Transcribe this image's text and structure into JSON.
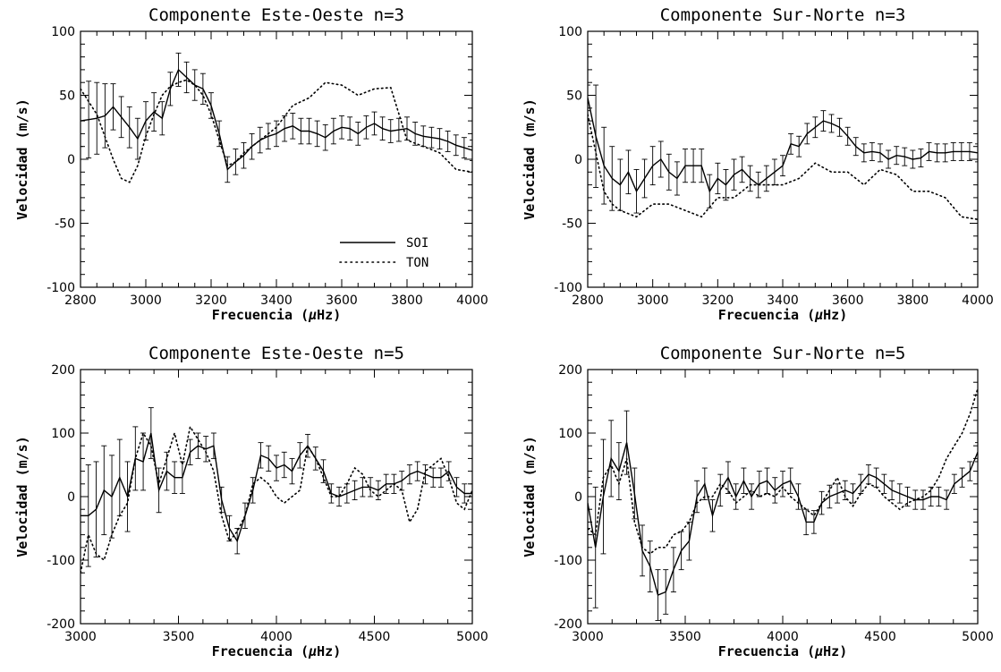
{
  "chart_data": [
    {
      "type": "line",
      "title": "Componente  Este-Oeste   n=3",
      "xlabel_main": "Frecuencia  (",
      "xlabel_mu": "μ",
      "xlabel_unit": "Hz)",
      "ylabel": "Velocidad  (m/s)",
      "xlim": [
        2800,
        4000
      ],
      "ylim": [
        -100,
        100
      ],
      "xticks": [
        "2800",
        "3000",
        "3200",
        "3400",
        "3600",
        "3800",
        "4000"
      ],
      "yticks": [
        "-100",
        "-50",
        "0",
        "50",
        "100"
      ],
      "legend": {
        "position": "lower-right",
        "entries": [
          {
            "label": "SOI",
            "style": "solid"
          },
          {
            "label": "TON",
            "style": "dotted"
          }
        ]
      },
      "series": [
        {
          "name": "SOI",
          "style": "solid",
          "x": [
            2800,
            2825,
            2850,
            2875,
            2900,
            2925,
            2950,
            2975,
            3000,
            3025,
            3050,
            3075,
            3100,
            3125,
            3150,
            3175,
            3200,
            3225,
            3250,
            3275,
            3300,
            3325,
            3350,
            3375,
            3400,
            3425,
            3450,
            3475,
            3500,
            3525,
            3550,
            3575,
            3600,
            3625,
            3650,
            3675,
            3700,
            3725,
            3750,
            3775,
            3800,
            3825,
            3850,
            3875,
            3900,
            3925,
            3950,
            3975,
            4000
          ],
          "y": [
            30,
            31,
            32,
            34,
            41,
            33,
            25,
            16,
            30,
            37,
            32,
            55,
            70,
            64,
            58,
            55,
            42,
            20,
            -8,
            -2,
            3,
            10,
            15,
            18,
            20,
            24,
            26,
            22,
            22,
            20,
            17,
            22,
            25,
            24,
            20,
            25,
            28,
            24,
            22,
            23,
            24,
            20,
            18,
            17,
            16,
            14,
            11,
            9,
            7
          ],
          "err": [
            20,
            30,
            28,
            25,
            18,
            16,
            16,
            16,
            15,
            15,
            13,
            13,
            13,
            12,
            12,
            12,
            10,
            10,
            10,
            10,
            10,
            10,
            10,
            10,
            10,
            10,
            10,
            10,
            10,
            10,
            10,
            10,
            9,
            9,
            9,
            9,
            9,
            9,
            9,
            9,
            9,
            9,
            8,
            8,
            8,
            8,
            8,
            8,
            8
          ]
        },
        {
          "name": "TON",
          "style": "dotted",
          "x": [
            2800,
            2850,
            2900,
            2925,
            2950,
            2975,
            3000,
            3025,
            3050,
            3075,
            3100,
            3125,
            3150,
            3175,
            3200,
            3225,
            3250,
            3275,
            3300,
            3350,
            3400,
            3450,
            3500,
            3550,
            3600,
            3650,
            3700,
            3750,
            3800,
            3850,
            3900,
            3950,
            4000
          ],
          "y": [
            55,
            35,
            0,
            -15,
            -18,
            -5,
            18,
            35,
            50,
            57,
            60,
            62,
            58,
            50,
            35,
            15,
            -5,
            -2,
            5,
            15,
            25,
            42,
            48,
            60,
            58,
            50,
            55,
            56,
            15,
            10,
            5,
            -8,
            -10
          ]
        }
      ]
    },
    {
      "type": "line",
      "title": "Componente  Sur-Norte    n=3",
      "xlabel_main": "Frecuencia  (",
      "xlabel_mu": "μ",
      "xlabel_unit": "Hz)",
      "ylabel": "Velocidad  (m/s)",
      "xlim": [
        2800,
        4000
      ],
      "ylim": [
        -100,
        100
      ],
      "xticks": [
        "2800",
        "3000",
        "3200",
        "3400",
        "3600",
        "3800",
        "4000"
      ],
      "yticks": [
        "-100",
        "-50",
        "0",
        "50",
        "100"
      ],
      "series": [
        {
          "name": "SOI",
          "style": "solid",
          "x": [
            2800,
            2825,
            2850,
            2875,
            2900,
            2925,
            2950,
            2975,
            3000,
            3025,
            3050,
            3075,
            3100,
            3125,
            3150,
            3175,
            3200,
            3225,
            3250,
            3275,
            3300,
            3325,
            3350,
            3375,
            3400,
            3425,
            3450,
            3475,
            3500,
            3525,
            3550,
            3575,
            3600,
            3625,
            3650,
            3675,
            3700,
            3725,
            3750,
            3775,
            3800,
            3825,
            3850,
            3875,
            3900,
            3925,
            3950,
            3975,
            4000
          ],
          "y": [
            48,
            18,
            -5,
            -15,
            -20,
            -10,
            -25,
            -15,
            -5,
            0,
            -10,
            -15,
            -5,
            -5,
            -5,
            -25,
            -15,
            -20,
            -12,
            -8,
            -15,
            -20,
            -15,
            -10,
            -5,
            12,
            10,
            20,
            25,
            30,
            28,
            25,
            18,
            10,
            5,
            6,
            5,
            0,
            3,
            2,
            0,
            1,
            6,
            5,
            5,
            6,
            6,
            6,
            5
          ],
          "err": [
            10,
            40,
            30,
            25,
            20,
            17,
            17,
            15,
            15,
            14,
            14,
            13,
            13,
            13,
            13,
            13,
            12,
            12,
            12,
            10,
            10,
            10,
            10,
            10,
            8,
            8,
            8,
            8,
            8,
            8,
            7,
            7,
            7,
            7,
            7,
            7,
            7,
            7,
            7,
            7,
            7,
            7,
            7,
            7,
            7,
            7,
            7,
            7,
            7
          ]
        },
        {
          "name": "TON",
          "style": "dotted",
          "x": [
            2800,
            2825,
            2850,
            2875,
            2900,
            2950,
            3000,
            3050,
            3100,
            3150,
            3200,
            3250,
            3300,
            3350,
            3400,
            3450,
            3500,
            3550,
            3600,
            3650,
            3700,
            3750,
            3800,
            3850,
            3900,
            3950,
            4000
          ],
          "y": [
            35,
            5,
            -25,
            -35,
            -40,
            -45,
            -35,
            -35,
            -40,
            -45,
            -30,
            -30,
            -20,
            -20,
            -20,
            -15,
            -3,
            -10,
            -10,
            -20,
            -8,
            -12,
            -25,
            -25,
            -30,
            -45,
            -47
          ]
        }
      ]
    },
    {
      "type": "line",
      "title": "Componente  Este-Oeste   n=5",
      "xlabel_main": "Frecuencia  (",
      "xlabel_mu": "μ",
      "xlabel_unit": "Hz)",
      "ylabel": "Velocidad  (m/s)",
      "xlim": [
        3000,
        5000
      ],
      "ylim": [
        -200,
        200
      ],
      "xticks": [
        "3000",
        "3500",
        "4000",
        "4500",
        "5000"
      ],
      "yticks": [
        "-200",
        "-100",
        "0",
        "100",
        "200"
      ],
      "series": [
        {
          "name": "SOI",
          "style": "solid",
          "x": [
            3000,
            3040,
            3080,
            3120,
            3160,
            3200,
            3240,
            3280,
            3320,
            3360,
            3400,
            3440,
            3480,
            3520,
            3560,
            3600,
            3640,
            3680,
            3720,
            3760,
            3800,
            3840,
            3880,
            3920,
            3960,
            4000,
            4040,
            4080,
            4120,
            4160,
            4200,
            4240,
            4280,
            4320,
            4360,
            4400,
            4440,
            4480,
            4520,
            4560,
            4600,
            4640,
            4680,
            4720,
            4760,
            4800,
            4840,
            4880,
            4920,
            4960,
            5000
          ],
          "y": [
            -30,
            -30,
            -20,
            10,
            0,
            30,
            0,
            60,
            55,
            100,
            10,
            40,
            30,
            30,
            70,
            80,
            75,
            80,
            -5,
            -50,
            -70,
            -30,
            10,
            65,
            60,
            45,
            50,
            40,
            65,
            80,
            60,
            40,
            5,
            0,
            5,
            10,
            15,
            15,
            10,
            20,
            20,
            25,
            35,
            40,
            35,
            30,
            30,
            40,
            15,
            5,
            5
          ],
          "err": [
            90,
            80,
            75,
            70,
            65,
            60,
            55,
            50,
            45,
            40,
            35,
            30,
            25,
            25,
            20,
            20,
            20,
            20,
            20,
            20,
            20,
            20,
            20,
            20,
            20,
            20,
            20,
            20,
            20,
            18,
            18,
            18,
            15,
            15,
            15,
            15,
            15,
            15,
            15,
            15,
            15,
            15,
            15,
            15,
            15,
            15,
            15,
            15,
            15,
            15,
            15
          ]
        },
        {
          "name": "TON",
          "style": "dotted",
          "x": [
            3000,
            3040,
            3080,
            3120,
            3160,
            3200,
            3240,
            3280,
            3320,
            3360,
            3400,
            3440,
            3480,
            3520,
            3560,
            3600,
            3640,
            3680,
            3720,
            3760,
            3800,
            3840,
            3880,
            3920,
            3960,
            4000,
            4040,
            4080,
            4120,
            4160,
            4200,
            4240,
            4280,
            4320,
            4360,
            4400,
            4440,
            4480,
            4520,
            4560,
            4600,
            4640,
            4680,
            4720,
            4760,
            4800,
            4840,
            4880,
            4920,
            4960,
            5000
          ],
          "y": [
            -120,
            -60,
            -90,
            -100,
            -60,
            -30,
            -10,
            60,
            100,
            80,
            20,
            60,
            100,
            50,
            110,
            90,
            70,
            40,
            -30,
            -70,
            -55,
            -30,
            20,
            30,
            20,
            0,
            -10,
            0,
            10,
            80,
            60,
            30,
            0,
            0,
            20,
            45,
            35,
            10,
            0,
            10,
            20,
            10,
            -40,
            -20,
            40,
            50,
            60,
            30,
            -10,
            -20,
            10
          ]
        }
      ]
    },
    {
      "type": "line",
      "title": "Componente  Sur-Norte    n=5",
      "xlabel_main": "Frecuencia  (",
      "xlabel_mu": "μ",
      "xlabel_unit": "Hz)",
      "ylabel": "Velocidad  (m/s)",
      "xlim": [
        3000,
        5000
      ],
      "ylim": [
        -200,
        200
      ],
      "xticks": [
        "3000",
        "3500",
        "4000",
        "4500",
        "5000"
      ],
      "yticks": [
        "-200",
        "-100",
        "0",
        "100",
        "200"
      ],
      "series": [
        {
          "name": "SOI",
          "style": "solid",
          "x": [
            3000,
            3040,
            3080,
            3120,
            3160,
            3200,
            3240,
            3280,
            3320,
            3360,
            3400,
            3440,
            3480,
            3520,
            3560,
            3600,
            3640,
            3680,
            3720,
            3760,
            3800,
            3840,
            3880,
            3920,
            3960,
            4000,
            4040,
            4080,
            4120,
            4160,
            4200,
            4240,
            4280,
            4320,
            4360,
            4400,
            4440,
            4480,
            4520,
            4560,
            4600,
            4640,
            4680,
            4720,
            4760,
            4800,
            4840,
            4880,
            4920,
            4960,
            5000
          ],
          "y": [
            -10,
            -80,
            0,
            60,
            40,
            85,
            5,
            -85,
            -110,
            -155,
            -150,
            -115,
            -85,
            -70,
            0,
            20,
            -30,
            10,
            30,
            0,
            25,
            0,
            20,
            25,
            10,
            20,
            25,
            0,
            -40,
            -40,
            -10,
            0,
            5,
            10,
            5,
            20,
            35,
            30,
            20,
            10,
            5,
            0,
            -5,
            -5,
            0,
            0,
            -5,
            20,
            30,
            40,
            70
          ],
          "err": [
            40,
            95,
            90,
            60,
            45,
            50,
            40,
            40,
            40,
            40,
            35,
            35,
            30,
            30,
            25,
            25,
            25,
            25,
            25,
            20,
            20,
            20,
            20,
            20,
            20,
            20,
            20,
            20,
            20,
            18,
            18,
            18,
            15,
            15,
            15,
            15,
            15,
            15,
            15,
            15,
            15,
            15,
            15,
            15,
            15,
            15,
            15,
            15,
            15,
            15,
            15
          ]
        },
        {
          "name": "TON",
          "style": "dotted",
          "x": [
            3000,
            3040,
            3080,
            3120,
            3160,
            3200,
            3240,
            3280,
            3320,
            3360,
            3400,
            3440,
            3480,
            3520,
            3560,
            3600,
            3640,
            3680,
            3720,
            3760,
            3800,
            3840,
            3880,
            3920,
            3960,
            4000,
            4040,
            4080,
            4120,
            4160,
            4200,
            4240,
            4280,
            4320,
            4360,
            4400,
            4440,
            4480,
            4520,
            4560,
            4600,
            4640,
            4680,
            4720,
            4760,
            4800,
            4840,
            4880,
            4920,
            4960,
            5000
          ],
          "y": [
            -50,
            -60,
            30,
            50,
            20,
            60,
            -40,
            -80,
            -90,
            -80,
            -80,
            -60,
            -55,
            -40,
            -10,
            0,
            0,
            20,
            10,
            -10,
            0,
            10,
            0,
            5,
            0,
            15,
            0,
            -10,
            -20,
            -30,
            -10,
            10,
            30,
            0,
            -15,
            5,
            20,
            15,
            0,
            -10,
            -20,
            -10,
            -5,
            0,
            10,
            30,
            60,
            80,
            100,
            130,
            170
          ]
        }
      ]
    }
  ]
}
